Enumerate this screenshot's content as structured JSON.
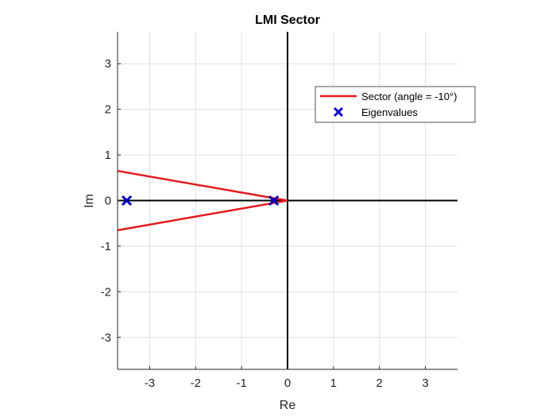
{
  "chart_data": {
    "type": "line",
    "title": "LMI Sector",
    "xlabel": "Re",
    "ylabel": "Im",
    "xlim": [
      -3.7,
      3.7
    ],
    "ylim": [
      -3.7,
      3.7
    ],
    "xticks": [
      -3,
      -2,
      -1,
      0,
      1,
      2,
      3
    ],
    "yticks": [
      -3,
      -2,
      -1,
      0,
      1,
      2,
      3
    ],
    "grid": true,
    "legend_location": "top-right",
    "series": [
      {
        "name": "Sector (angle = -10°)",
        "type": "line",
        "color": "#e41a1c",
        "x": [
          -3.7,
          0,
          -3.7
        ],
        "y": [
          0.65,
          0,
          -0.65
        ]
      },
      {
        "name": "Eigenvalues",
        "type": "scatter",
        "marker": "x",
        "color": "#0000cc",
        "x": [
          -3.5,
          -0.3
        ],
        "y": [
          0,
          0
        ]
      }
    ],
    "reference_lines": {
      "color": "#000000",
      "horizontal_at": 0,
      "vertical_at": 0
    }
  }
}
